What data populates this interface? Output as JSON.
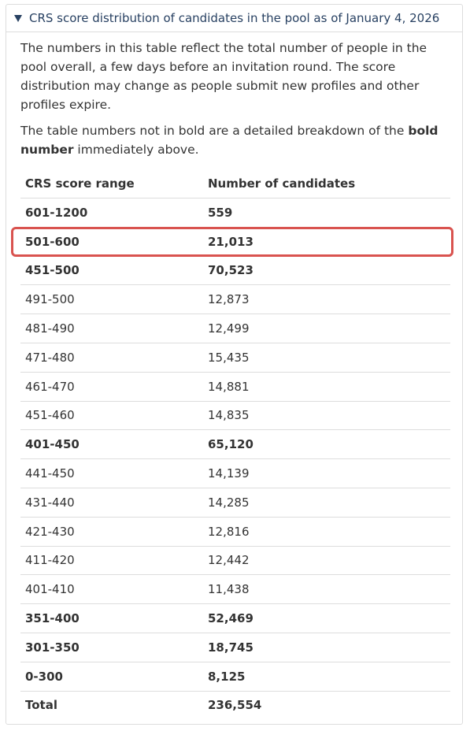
{
  "details": {
    "summary": "CRS score distribution of candidates in the pool as of January 4, 2026",
    "paragraphs": [
      {
        "parts": [
          {
            "text": "The numbers in this table reflect the total number of people in the pool overall, a few days before an invitation round. The score distribution may change as people submit new profiles and other profiles expire.",
            "bold": false
          }
        ]
      },
      {
        "parts": [
          {
            "text": "The table numbers not in bold are a detailed breakdown of the ",
            "bold": false
          },
          {
            "text": "bold number",
            "bold": true
          },
          {
            "text": " immediately above.",
            "bold": false
          }
        ]
      }
    ],
    "table": {
      "header": [
        "CRS score range",
        "Number of candidates"
      ],
      "rows": [
        {
          "cells": [
            "601-1200",
            "559"
          ],
          "bold": true,
          "highlighted": false
        },
        {
          "cells": [
            "501-600",
            "21,013"
          ],
          "bold": true,
          "highlighted": true
        },
        {
          "cells": [
            "451-500",
            "70,523"
          ],
          "bold": true,
          "highlighted": false
        },
        {
          "cells": [
            "491-500",
            "12,873"
          ],
          "bold": false,
          "highlighted": false
        },
        {
          "cells": [
            "481-490",
            "12,499"
          ],
          "bold": false,
          "highlighted": false
        },
        {
          "cells": [
            "471-480",
            "15,435"
          ],
          "bold": false,
          "highlighted": false
        },
        {
          "cells": [
            "461-470",
            "14,881"
          ],
          "bold": false,
          "highlighted": false
        },
        {
          "cells": [
            "451-460",
            "14,835"
          ],
          "bold": false,
          "highlighted": false
        },
        {
          "cells": [
            "401-450",
            "65,120"
          ],
          "bold": true,
          "highlighted": false
        },
        {
          "cells": [
            "441-450",
            "14,139"
          ],
          "bold": false,
          "highlighted": false
        },
        {
          "cells": [
            "431-440",
            "14,285"
          ],
          "bold": false,
          "highlighted": false
        },
        {
          "cells": [
            "421-430",
            "12,816"
          ],
          "bold": false,
          "highlighted": false
        },
        {
          "cells": [
            "411-420",
            "12,442"
          ],
          "bold": false,
          "highlighted": false
        },
        {
          "cells": [
            "401-410",
            "11,438"
          ],
          "bold": false,
          "highlighted": false
        },
        {
          "cells": [
            "351-400",
            "52,469"
          ],
          "bold": true,
          "highlighted": false
        },
        {
          "cells": [
            "301-350",
            "18,745"
          ],
          "bold": true,
          "highlighted": false
        },
        {
          "cells": [
            "0-300",
            "8,125"
          ],
          "bold": true,
          "highlighted": false
        },
        {
          "cells": [
            "Total",
            "236,554"
          ],
          "bold": true,
          "highlighted": false
        }
      ]
    }
  }
}
